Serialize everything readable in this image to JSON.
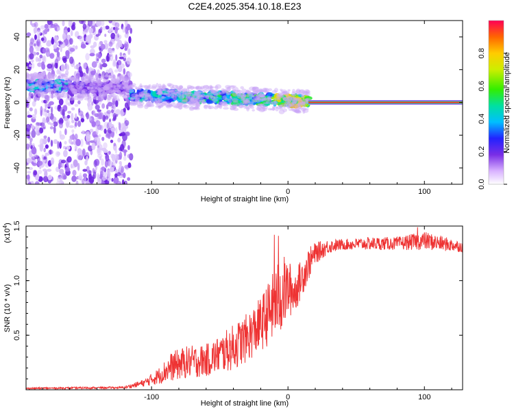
{
  "title": "C2E4.2025.354.10.18.E23",
  "chart_data": [
    {
      "type": "heatmap",
      "name": "spectrogram",
      "xlabel": "Height of straight line (km)",
      "ylabel": "Frequency (Hz)",
      "xlim": [
        -192,
        128
      ],
      "ylim": [
        -50,
        50
      ],
      "x_ticks": [
        -100,
        0,
        100
      ],
      "y_ticks": [
        -40,
        -20,
        0,
        20,
        40
      ],
      "x_tick_labels": [
        "-100",
        "0",
        "100"
      ],
      "y_tick_labels": [
        "-40",
        "-20",
        "0",
        "20",
        "40"
      ],
      "noise_region_x": [
        -192,
        -115
      ],
      "tone_segments": [
        {
          "x0": -192,
          "x1": -160,
          "freq": 10,
          "amp": 0.42
        },
        {
          "x0": -160,
          "x1": -115,
          "freq": 9,
          "amp": 0.2
        },
        {
          "x0": -115,
          "x1": -80,
          "freq": 4,
          "amp": 0.45
        },
        {
          "x0": -80,
          "x1": -40,
          "freq": 3,
          "amp": 0.5
        },
        {
          "x0": -40,
          "x1": -10,
          "freq": 2,
          "amp": 0.55
        },
        {
          "x0": -10,
          "x1": 15,
          "freq": 1,
          "amp": 0.75
        },
        {
          "x0": 15,
          "x1": 128,
          "freq": 0,
          "amp": 1.0
        }
      ],
      "colorbar": {
        "label": "Normalized spectral amplitude",
        "range": [
          0,
          1
        ],
        "ticks": [
          0.0,
          0.2,
          0.4,
          0.6,
          0.8
        ],
        "tick_labels": [
          "0.0",
          "0.2",
          "0.4",
          "0.6",
          "0.8"
        ]
      }
    },
    {
      "type": "line",
      "name": "snr",
      "xlabel": "Height of straight line (km)",
      "ylabel": "SNR (10 * v/v)",
      "scale_label": "(x10",
      "scale_exponent": "4",
      "scale_suffix": ")",
      "xlim": [
        -192,
        128
      ],
      "ylim": [
        0,
        1.5
      ],
      "x_ticks": [
        -100,
        0,
        100
      ],
      "y_ticks": [
        0.5,
        1.0,
        1.5
      ],
      "x_tick_labels": [
        "-100",
        "0",
        "100"
      ],
      "y_tick_labels": [
        "0.5",
        "1.0",
        "1.5"
      ],
      "color": "#ee3333",
      "envelope": {
        "x": [
          -192,
          -120,
          -105,
          -95,
          -85,
          -75,
          -60,
          -50,
          -40,
          -30,
          -20,
          -10,
          -5,
          0,
          5,
          10,
          15,
          20,
          30,
          40,
          60,
          80,
          100,
          128
        ],
        "low": [
          0.005,
          0.01,
          0.03,
          0.05,
          0.08,
          0.1,
          0.12,
          0.15,
          0.18,
          0.25,
          0.35,
          0.45,
          0.5,
          0.65,
          0.7,
          0.85,
          1.0,
          1.15,
          1.25,
          1.28,
          1.28,
          1.28,
          1.28,
          1.26
        ],
        "high": [
          0.02,
          0.03,
          0.1,
          0.2,
          0.35,
          0.4,
          0.42,
          0.5,
          0.6,
          0.7,
          0.85,
          1.1,
          1.25,
          1.2,
          1.1,
          1.2,
          1.3,
          1.35,
          1.38,
          1.38,
          1.4,
          1.4,
          1.45,
          1.36
        ]
      },
      "spikes": [
        [
          -10,
          1.42
        ],
        [
          -7,
          1.41
        ],
        [
          95,
          1.49
        ]
      ]
    }
  ],
  "colors": {
    "noise_purple": "#7a2ee6",
    "trace_red": "#ee3333"
  }
}
